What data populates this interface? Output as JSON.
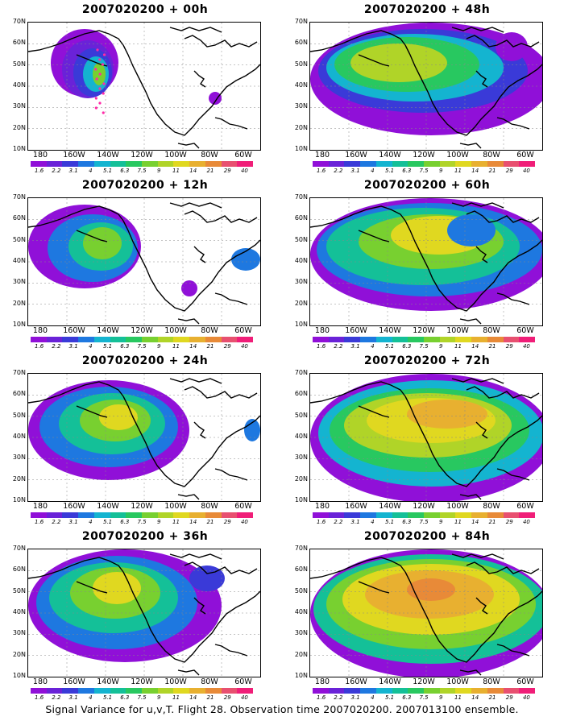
{
  "panels": [
    {
      "title": "2007020200 + 00h",
      "lead_hours": 0
    },
    {
      "title": "2007020200 + 48h",
      "lead_hours": 48
    },
    {
      "title": "2007020200 + 12h",
      "lead_hours": 12
    },
    {
      "title": "2007020200 + 60h",
      "lead_hours": 60
    },
    {
      "title": "2007020200 + 24h",
      "lead_hours": 24
    },
    {
      "title": "2007020200 + 72h",
      "lead_hours": 72
    },
    {
      "title": "2007020200 + 36h",
      "lead_hours": 36
    },
    {
      "title": "2007020200 + 84h",
      "lead_hours": 84
    }
  ],
  "map": {
    "lat_labels": [
      "70N",
      "60N",
      "50N",
      "40N",
      "30N",
      "20N",
      "10N"
    ],
    "lon_labels": [
      "180",
      "160W",
      "140W",
      "120W",
      "100W",
      "80W",
      "60W"
    ]
  },
  "colorbar": {
    "labels": [
      "1.6",
      "2.2",
      "3.1",
      "4",
      "5.1",
      "6.3",
      "7.5",
      "9",
      "11",
      "14",
      "21",
      "29",
      "40"
    ],
    "colors": [
      "#9010d8",
      "#6a22d8",
      "#3a3ad8",
      "#1e78e0",
      "#14b4d0",
      "#14c098",
      "#28c860",
      "#78d030",
      "#b0d428",
      "#e0d820",
      "#e8b030",
      "#e88a38",
      "#e85070",
      "#f01e78"
    ]
  },
  "footer": "Signal Variance for u,v,T. Flight 28. Observation time 2007020200. 2007013100 ensemble.",
  "observation_markers": {
    "color": "#ff2aa8"
  }
}
